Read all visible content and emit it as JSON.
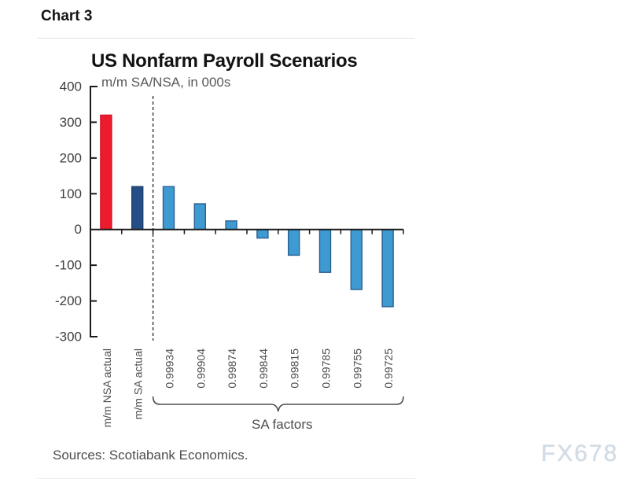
{
  "header": {
    "chart_label": "Chart 3"
  },
  "chart_data": {
    "type": "bar",
    "title": "US Nonfarm Payroll Scenarios",
    "subtitle": "m/m SA/NSA, in 000s",
    "categories": [
      "m/m NSA actual",
      "m/m SA actual",
      "0.99934",
      "0.99904",
      "0.99874",
      "0.99844",
      "0.99815",
      "0.99785",
      "0.99755",
      "0.99725"
    ],
    "values": [
      320,
      120,
      120,
      72,
      24,
      -24,
      -72,
      -120,
      -168,
      -216
    ],
    "series_of_bar": [
      "nsa_actual",
      "sa_actual",
      "scenario",
      "scenario",
      "scenario",
      "scenario",
      "scenario",
      "scenario",
      "scenario",
      "scenario"
    ],
    "palette": {
      "nsa_actual": {
        "fill": "#ec1b2d",
        "stroke": "#d41227"
      },
      "sa_actual": {
        "fill": "#264e86",
        "stroke": "#1d3f6e"
      },
      "scenario": {
        "fill": "#3e9bd2",
        "stroke": "#2d5f91"
      }
    },
    "ylim": [
      -300,
      400
    ],
    "yticks": [
      400,
      300,
      200,
      100,
      0,
      -100,
      -200,
      -300
    ],
    "grid": false,
    "legend": "none",
    "separator_after_index": 1,
    "group_annotation": {
      "label": "SA factors",
      "from_index": 2,
      "to_index": 9
    }
  },
  "footer": {
    "sources": "Sources: Scotiabank Economics.",
    "watermark": "FX678"
  }
}
